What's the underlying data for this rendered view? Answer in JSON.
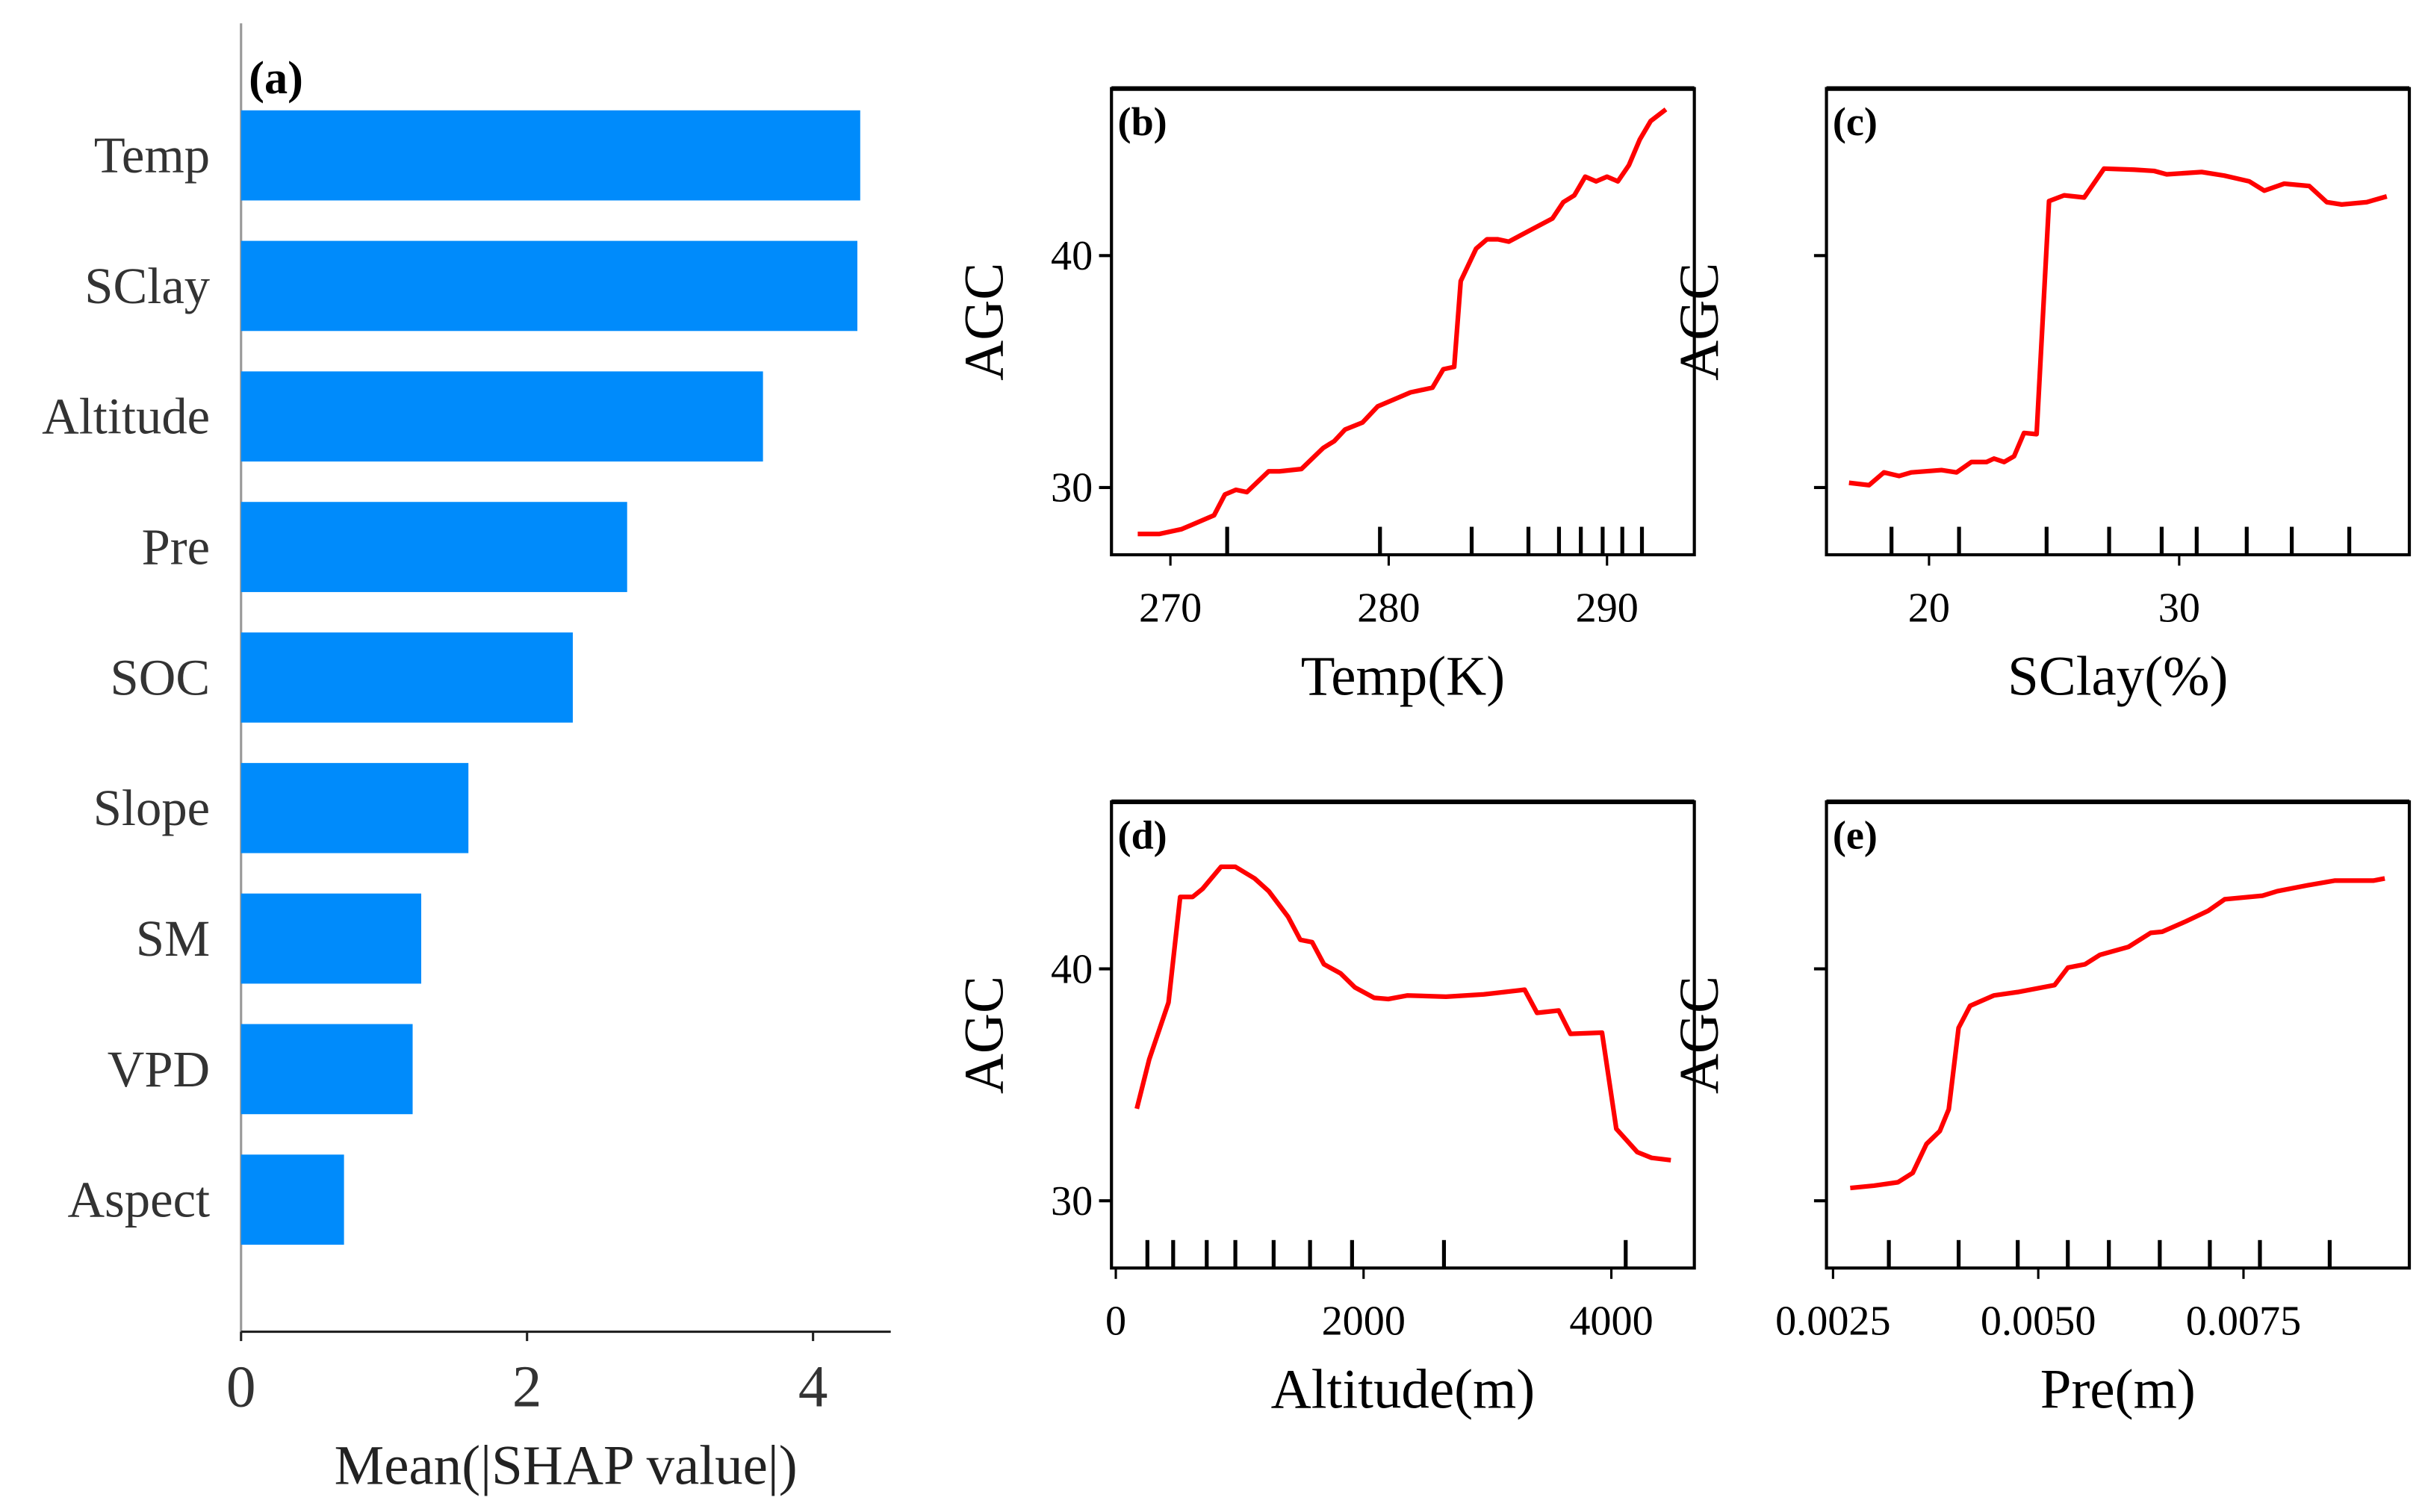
{
  "chart_data": [
    {
      "panel_label": "(a)",
      "type": "bar",
      "orientation": "horizontal",
      "categories": [
        "Temp",
        "SClay",
        "Altitude",
        "Pre",
        "SOC",
        "Slope",
        "SM",
        "VPD",
        "Aspect"
      ],
      "values": [
        4.33,
        4.31,
        3.65,
        2.7,
        2.32,
        1.59,
        1.26,
        1.2,
        0.72
      ],
      "xlabel": "Mean(|SHAP value|)",
      "xticks": [
        0,
        2,
        4
      ],
      "xtick_labels": [
        "0",
        "2",
        "4"
      ],
      "xlim": [
        0,
        4.55
      ],
      "color": "#008bfb"
    },
    {
      "panel_label": "(b)",
      "type": "line",
      "xlabel": "Temp(K)",
      "ylabel": "AGC",
      "xlim": [
        267.3,
        294.0
      ],
      "ylim": [
        27.1,
        47.2
      ],
      "xticks": [
        270,
        280,
        290
      ],
      "xtick_labels": [
        "270",
        "280",
        "290"
      ],
      "yticks": [
        30,
        40
      ],
      "ytick_labels": [
        "30",
        "40"
      ],
      "x": [
        268.5,
        269.5,
        270.5,
        271,
        272,
        272.5,
        273,
        273.5,
        274.5,
        275,
        276,
        277,
        277.5,
        278,
        278.8,
        279.5,
        280.5,
        281,
        282,
        282.5,
        283,
        283.3,
        284,
        284.5,
        285,
        285.5,
        286.5,
        287.5,
        288,
        288.5,
        289,
        289.5,
        290,
        290.5,
        291,
        291.5,
        292,
        292.7
      ],
      "y": [
        28.0,
        28.0,
        28.2,
        28.4,
        28.8,
        29.7,
        29.9,
        29.8,
        30.7,
        30.7,
        30.8,
        31.7,
        32.0,
        32.5,
        32.8,
        33.5,
        33.9,
        34.1,
        34.3,
        35.1,
        35.2,
        38.9,
        40.3,
        40.7,
        40.7,
        40.6,
        41.1,
        41.6,
        42.3,
        42.6,
        43.4,
        43.2,
        43.4,
        43.2,
        43.9,
        45.0,
        45.8,
        46.3
      ],
      "rug": [
        272.6,
        279.6,
        283.8,
        286.4,
        287.8,
        288.8,
        289.8,
        290.7,
        291.6
      ],
      "color": "#ff0000"
    },
    {
      "panel_label": "(c)",
      "type": "line",
      "xlabel": "SClay(%)",
      "ylabel": "AGC",
      "xlim": [
        15.9,
        39.2
      ],
      "ylim": [
        27.1,
        47.2
      ],
      "xticks": [
        20,
        30
      ],
      "xtick_labels": [
        "20",
        "30"
      ],
      "yticks": [
        30,
        40
      ],
      "ytick_labels": [],
      "x": [
        16.8,
        17.6,
        18.2,
        18.8,
        19.3,
        20.5,
        21.1,
        21.7,
        22.3,
        22.6,
        23.0,
        23.4,
        23.8,
        24.3,
        24.8,
        25.4,
        26.2,
        27.0,
        28.2,
        29.0,
        29.5,
        30.9,
        31.8,
        32.8,
        33.4,
        34.2,
        35.2,
        35.9,
        36.5,
        37.5,
        38.3
      ],
      "y": [
        30.2,
        30.1,
        30.65,
        30.5,
        30.65,
        30.75,
        30.65,
        31.1,
        31.1,
        31.25,
        31.1,
        31.35,
        32.35,
        32.3,
        42.35,
        42.6,
        42.5,
        43.75,
        43.7,
        43.65,
        43.5,
        43.6,
        43.45,
        43.2,
        42.8,
        43.1,
        43.0,
        42.3,
        42.2,
        42.3,
        42.55
      ],
      "rug": [
        18.5,
        21.2,
        24.7,
        27.2,
        29.3,
        30.7,
        32.7,
        34.5,
        36.8
      ],
      "color": "#ff0000"
    },
    {
      "panel_label": "(d)",
      "type": "line",
      "xlabel": "Altitude(m)",
      "ylabel": "AGC",
      "xlim": [
        -35,
        4670
      ],
      "ylim": [
        27.1,
        47.2
      ],
      "xticks": [
        0,
        2000,
        4000
      ],
      "xtick_labels": [
        "0",
        "2000",
        "4000"
      ],
      "yticks": [
        30,
        40
      ],
      "ytick_labels": [
        "30",
        "40"
      ],
      "x": [
        170,
        270,
        425,
        520,
        620,
        700,
        850,
        965,
        1120,
        1235,
        1390,
        1490,
        1585,
        1680,
        1815,
        1930,
        2085,
        2200,
        2355,
        2665,
        2970,
        3300,
        3400,
        3575,
        3670,
        3925,
        4040,
        4210,
        4325,
        4480
      ],
      "y": [
        33.97,
        36.1,
        38.55,
        43.1,
        43.1,
        43.45,
        44.4,
        44.4,
        43.9,
        43.35,
        42.25,
        41.25,
        41.15,
        40.2,
        39.8,
        39.2,
        38.75,
        38.7,
        38.85,
        38.8,
        38.9,
        39.1,
        38.1,
        38.2,
        37.2,
        37.25,
        33.1,
        32.1,
        31.85,
        31.75
      ],
      "rug": [
        255,
        463,
        734,
        965,
        1274,
        1568,
        1907,
        2649,
        4116
      ],
      "color": "#ff0000"
    },
    {
      "panel_label": "(e)",
      "type": "line",
      "xlabel": "Pre(m)",
      "ylabel": "AGC",
      "xlim": [
        0.00242,
        0.00952
      ],
      "ylim": [
        27.1,
        47.2
      ],
      "xticks": [
        0.0025,
        0.005,
        0.0075
      ],
      "xtick_labels": [
        "0.0025",
        "0.0050",
        "0.0075"
      ],
      "yticks": [
        30,
        40
      ],
      "ytick_labels": [],
      "x": [
        0.00271,
        0.003,
        0.00329,
        0.00347,
        0.00364,
        0.0038,
        0.00391,
        0.00403,
        0.00417,
        0.00446,
        0.00475,
        0.0052,
        0.00536,
        0.00557,
        0.00575,
        0.0061,
        0.00637,
        0.00651,
        0.0068,
        0.00707,
        0.00727,
        0.00773,
        0.00791,
        0.00828,
        0.00861,
        0.00908,
        0.00922
      ],
      "y": [
        30.55,
        30.65,
        30.8,
        31.2,
        32.45,
        33.0,
        33.95,
        37.45,
        38.4,
        38.85,
        39.0,
        39.3,
        40.05,
        40.2,
        40.6,
        40.95,
        41.55,
        41.6,
        42.05,
        42.5,
        43.0,
        43.15,
        43.35,
        43.6,
        43.8,
        43.8,
        43.9
      ],
      "rug": [
        0.00318,
        0.00403,
        0.00475,
        0.00536,
        0.00586,
        0.00648,
        0.00709,
        0.0077,
        0.00855
      ],
      "color": "#ff0000"
    }
  ]
}
